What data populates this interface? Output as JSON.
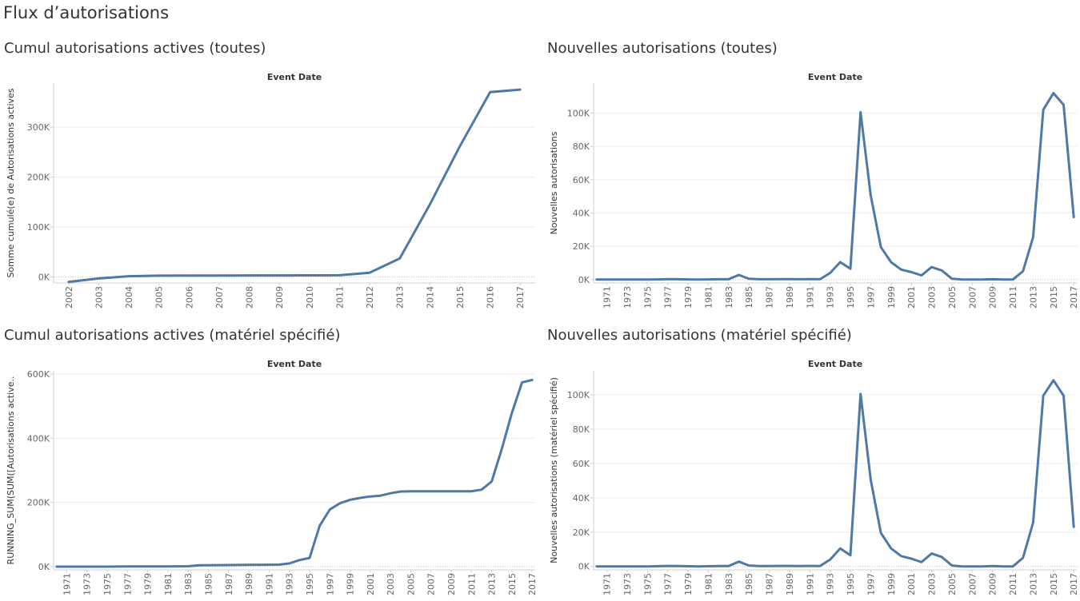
{
  "dashboard": {
    "title": "Flux d’autorisations"
  },
  "colors": {
    "line": "#4e79a7",
    "grid": "#ececec",
    "axis": "#d0d0d0",
    "zero": "#bdbdbd"
  },
  "chart_data": [
    {
      "type": "line",
      "title": "Cumul autorisations actives (toutes)",
      "header": "Event Date",
      "ylabel": "Somme cumulé(e) de Autorisations actives",
      "ylim": [
        -12000,
        388000
      ],
      "yticks": [
        0,
        100000,
        200000,
        300000
      ],
      "ytick_labels": [
        "0K",
        "100K",
        "200K",
        "300K"
      ],
      "x": [
        2002,
        2003,
        2004,
        2005,
        2006,
        2007,
        2008,
        2009,
        2010,
        2011,
        2012,
        2013,
        2014,
        2015,
        2016,
        2017
      ],
      "x_tick_labels": [
        "2002",
        "2003",
        "2004",
        "2005",
        "2006",
        "2007",
        "2008",
        "2009",
        "2010",
        "2011",
        "2012",
        "2013",
        "2014",
        "2015",
        "2016",
        "2017"
      ],
      "series": [
        {
          "values": [
            -10000,
            -3000,
            1500,
            2500,
            2700,
            2800,
            3000,
            3100,
            3200,
            3300,
            8500,
            37000,
            145000,
            262000,
            370000,
            375000
          ]
        }
      ]
    },
    {
      "type": "line",
      "title": "Nouvelles autorisations (toutes)",
      "header": "Event Date",
      "ylabel": "Nouvelles autorisations",
      "ylim": [
        -2000,
        118000
      ],
      "yticks": [
        0,
        20000,
        40000,
        60000,
        80000,
        100000
      ],
      "ytick_labels": [
        "0K",
        "20K",
        "40K",
        "60K",
        "80K",
        "100K"
      ],
      "x": [
        1970,
        1971,
        1972,
        1973,
        1974,
        1975,
        1976,
        1977,
        1978,
        1979,
        1980,
        1981,
        1982,
        1983,
        1984,
        1985,
        1986,
        1987,
        1988,
        1989,
        1990,
        1991,
        1992,
        1993,
        1994,
        1995,
        1996,
        1997,
        1998,
        1999,
        2000,
        2001,
        2002,
        2003,
        2004,
        2005,
        2006,
        2007,
        2008,
        2009,
        2010,
        2011,
        2012,
        2013,
        2014,
        2015,
        2016,
        2017
      ],
      "x_tick_labels": [
        "1971",
        "1973",
        "1975",
        "1977",
        "1979",
        "1981",
        "1983",
        "1985",
        "1987",
        "1989",
        "1991",
        "1993",
        "1995",
        "1997",
        "1999",
        "2001",
        "2003",
        "2005",
        "2007",
        "2009",
        "2011",
        "2013",
        "2015",
        "2017"
      ],
      "series": [
        {
          "values": [
            0,
            0,
            0,
            0,
            0,
            0,
            100,
            300,
            200,
            100,
            0,
            100,
            200,
            200,
            2800,
            500,
            200,
            200,
            300,
            300,
            200,
            300,
            200,
            4000,
            10500,
            6500,
            100500,
            50500,
            19500,
            10500,
            6000,
            4500,
            2500,
            7500,
            5500,
            500,
            0,
            0,
            0,
            200,
            0,
            0,
            5000,
            25500,
            102000,
            112000,
            105000,
            37500
          ]
        }
      ]
    },
    {
      "type": "line",
      "title": "Cumul autorisations actives (matériel spécifié)",
      "header": "Event Date",
      "ylabel": "RUNNING_SUM(SUM([Autorisations active..",
      "ylim": [
        -10000,
        610000
      ],
      "yticks": [
        0,
        200000,
        400000,
        600000
      ],
      "ytick_labels": [
        "0K",
        "200K",
        "400K",
        "600K"
      ],
      "x": [
        1970,
        1971,
        1972,
        1973,
        1974,
        1975,
        1976,
        1977,
        1978,
        1979,
        1980,
        1981,
        1982,
        1983,
        1984,
        1985,
        1986,
        1987,
        1988,
        1989,
        1990,
        1991,
        1992,
        1993,
        1994,
        1995,
        1996,
        1997,
        1998,
        1999,
        2000,
        2001,
        2002,
        2003,
        2004,
        2005,
        2006,
        2007,
        2008,
        2009,
        2010,
        2011,
        2012,
        2013,
        2014,
        2015,
        2016,
        2017
      ],
      "x_tick_labels": [
        "1971",
        "1973",
        "1975",
        "1977",
        "1979",
        "1981",
        "1983",
        "1985",
        "1987",
        "1989",
        "1991",
        "1993",
        "1995",
        "1997",
        "1999",
        "2001",
        "2003",
        "2005",
        "2007",
        "2009",
        "2011",
        "2013",
        "2015",
        "2017"
      ],
      "series": [
        {
          "values": [
            0,
            0,
            0,
            0,
            0,
            0,
            100,
            400,
            600,
            700,
            700,
            800,
            1000,
            1200,
            4000,
            4500,
            4700,
            4900,
            5200,
            5500,
            5700,
            6000,
            6200,
            10000,
            20500,
            27000,
            127500,
            178000,
            197500,
            208000,
            214000,
            218500,
            221000,
            228500,
            234000,
            234500,
            234500,
            234500,
            234500,
            234700,
            234700,
            234700,
            239700,
            265200,
            367200,
            479200,
            574200,
            581700
          ]
        }
      ]
    },
    {
      "type": "line",
      "title": "Nouvelles autorisations (matériel spécifié)",
      "header": "Event Date",
      "ylabel": "Nouvelles autorisations (matériel spécifié)",
      "ylim": [
        -2000,
        114000
      ],
      "yticks": [
        0,
        20000,
        40000,
        60000,
        80000,
        100000
      ],
      "ytick_labels": [
        "0K",
        "20K",
        "40K",
        "60K",
        "80K",
        "100K"
      ],
      "x": [
        1970,
        1971,
        1972,
        1973,
        1974,
        1975,
        1976,
        1977,
        1978,
        1979,
        1980,
        1981,
        1982,
        1983,
        1984,
        1985,
        1986,
        1987,
        1988,
        1989,
        1990,
        1991,
        1992,
        1993,
        1994,
        1995,
        1996,
        1997,
        1998,
        1999,
        2000,
        2001,
        2002,
        2003,
        2004,
        2005,
        2006,
        2007,
        2008,
        2009,
        2010,
        2011,
        2012,
        2013,
        2014,
        2015,
        2016,
        2017
      ],
      "x_tick_labels": [
        "1971",
        "1973",
        "1975",
        "1977",
        "1979",
        "1981",
        "1983",
        "1985",
        "1987",
        "1989",
        "1991",
        "1993",
        "1995",
        "1997",
        "1999",
        "2001",
        "2003",
        "2005",
        "2007",
        "2009",
        "2011",
        "2013",
        "2015",
        "2017"
      ],
      "series": [
        {
          "values": [
            0,
            0,
            0,
            0,
            0,
            0,
            100,
            300,
            200,
            100,
            0,
            100,
            200,
            200,
            2800,
            500,
            200,
            200,
            300,
            300,
            200,
            300,
            200,
            4000,
            10500,
            6500,
            100500,
            50500,
            19500,
            10500,
            6000,
            4500,
            2500,
            7500,
            5500,
            500,
            0,
            0,
            0,
            200,
            0,
            0,
            5000,
            25500,
            99500,
            108500,
            99500,
            23000
          ]
        }
      ]
    }
  ]
}
